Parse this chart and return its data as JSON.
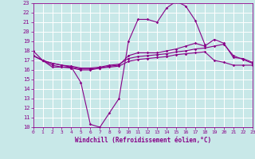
{
  "xlabel": "Windchill (Refroidissement éolien,°C)",
  "bg_color": "#c8e8e8",
  "grid_color": "#ffffff",
  "line_color": "#880088",
  "xlim": [
    0,
    23
  ],
  "ylim": [
    10,
    23
  ],
  "xticks": [
    0,
    1,
    2,
    3,
    4,
    5,
    6,
    7,
    8,
    9,
    10,
    11,
    12,
    13,
    14,
    15,
    16,
    17,
    18,
    19,
    20,
    21,
    22,
    23
  ],
  "yticks": [
    10,
    11,
    12,
    13,
    14,
    15,
    16,
    17,
    18,
    19,
    20,
    21,
    22,
    23
  ],
  "curves": [
    {
      "x": [
        0,
        1,
        2,
        3,
        4,
        5,
        6,
        7,
        8,
        9,
        10,
        11,
        12,
        13,
        14,
        15,
        16,
        17,
        18
      ],
      "y": [
        18,
        17,
        16.3,
        16.3,
        16.3,
        14.7,
        10.3,
        10.0,
        11.5,
        13.0,
        19.0,
        21.3,
        21.3,
        21.0,
        22.5,
        23.2,
        22.7,
        21.2,
        18.7
      ]
    },
    {
      "x": [
        0,
        1,
        2,
        3,
        4,
        5,
        6,
        7,
        8,
        9,
        10,
        11,
        12,
        13,
        14,
        15,
        16,
        17,
        18,
        19,
        20,
        21,
        22,
        23
      ],
      "y": [
        17.5,
        17.0,
        16.5,
        16.3,
        16.2,
        16.0,
        16.0,
        16.2,
        16.4,
        16.5,
        17.5,
        17.8,
        17.8,
        17.8,
        18.0,
        18.2,
        18.5,
        18.8,
        18.5,
        19.2,
        18.8,
        17.3,
        17.2,
        16.8
      ]
    },
    {
      "x": [
        0,
        1,
        2,
        3,
        4,
        5,
        6,
        7,
        8,
        9,
        10,
        11,
        12,
        13,
        14,
        15,
        16,
        17,
        18,
        19,
        20,
        21,
        22,
        23
      ],
      "y": [
        17.5,
        17.0,
        16.7,
        16.5,
        16.4,
        16.2,
        16.2,
        16.3,
        16.5,
        16.6,
        17.2,
        17.4,
        17.5,
        17.6,
        17.7,
        17.9,
        18.0,
        18.2,
        18.3,
        18.5,
        18.7,
        17.5,
        17.1,
        16.7
      ]
    },
    {
      "x": [
        0,
        1,
        2,
        3,
        4,
        5,
        6,
        7,
        8,
        9,
        10,
        11,
        12,
        13,
        14,
        15,
        16,
        17,
        18,
        19,
        20,
        21,
        22,
        23
      ],
      "y": [
        17.5,
        17.0,
        16.7,
        16.5,
        16.3,
        16.1,
        16.1,
        16.2,
        16.3,
        16.4,
        16.9,
        17.1,
        17.2,
        17.3,
        17.4,
        17.6,
        17.7,
        17.8,
        17.9,
        17.0,
        16.8,
        16.5,
        16.5,
        16.5
      ]
    }
  ]
}
